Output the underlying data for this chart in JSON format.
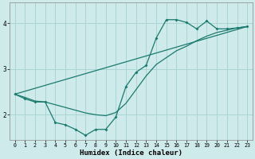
{
  "title": "",
  "xlabel": "Humidex (Indice chaleur)",
  "ylabel": "",
  "bg_color": "#ceeaea",
  "line_color": "#1a7a6e",
  "grid_color": "#aad4d4",
  "xlim": [
    -0.5,
    23.5
  ],
  "ylim": [
    1.45,
    4.45
  ],
  "yticks": [
    2,
    3,
    4
  ],
  "xticks": [
    0,
    1,
    2,
    3,
    4,
    5,
    6,
    7,
    8,
    9,
    10,
    11,
    12,
    13,
    14,
    15,
    16,
    17,
    18,
    19,
    20,
    21,
    22,
    23
  ],
  "line1_x": [
    0,
    1,
    2,
    3,
    4,
    5,
    6,
    7,
    8,
    9,
    10,
    11,
    12,
    13,
    14,
    15,
    16,
    17,
    18,
    19,
    20,
    21,
    22,
    23
  ],
  "line1_y": [
    2.45,
    2.38,
    2.3,
    2.28,
    2.22,
    2.16,
    2.1,
    2.04,
    2.0,
    1.98,
    2.05,
    2.25,
    2.55,
    2.85,
    3.1,
    3.25,
    3.4,
    3.5,
    3.62,
    3.72,
    3.8,
    3.85,
    3.9,
    3.93
  ],
  "line2_x": [
    0,
    1,
    2,
    3,
    4,
    5,
    6,
    7,
    8,
    9,
    10,
    11,
    12,
    13,
    14,
    15,
    16,
    17,
    18,
    19,
    20,
    21,
    22,
    23
  ],
  "line2_y": [
    2.45,
    2.35,
    2.28,
    2.28,
    1.83,
    1.78,
    1.68,
    1.55,
    1.68,
    1.68,
    1.95,
    2.62,
    2.93,
    3.08,
    3.68,
    4.08,
    4.08,
    4.02,
    3.88,
    4.05,
    3.88,
    3.88,
    3.9,
    3.93
  ],
  "line3_x": [
    0,
    23
  ],
  "line3_y": [
    2.45,
    3.93
  ]
}
